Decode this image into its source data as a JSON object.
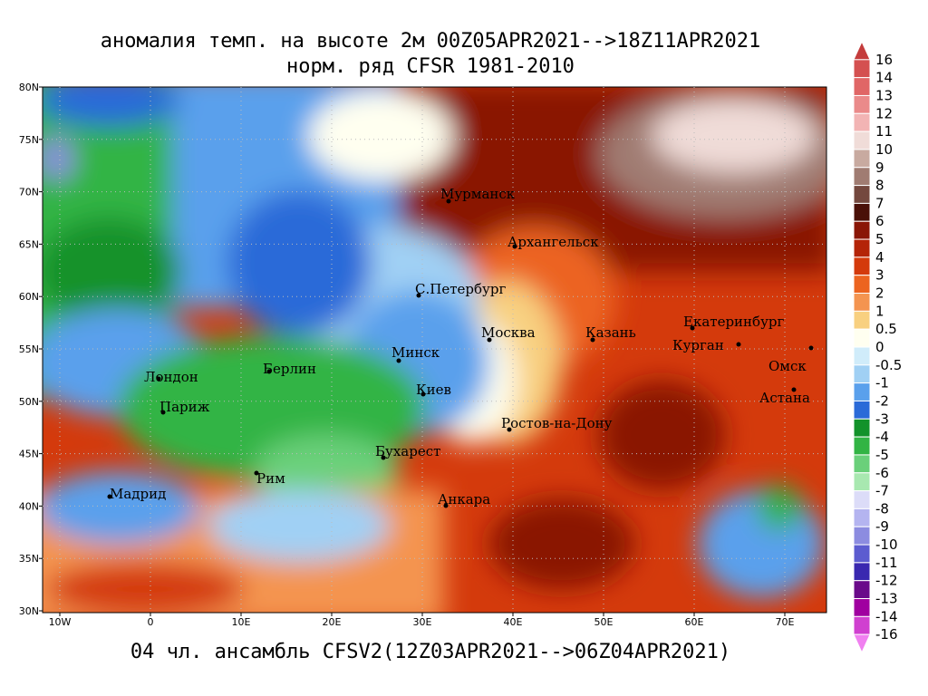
{
  "title": [
    "аномалия темп. на высоте 2м 00Z05APR2021-->18Z11APR2021",
    "норм. ряд CFSR 1981-2010"
  ],
  "footer": "04 чл. ансамбль CFSV2(12Z03APR2021-->06Z04APR2021)",
  "map": {
    "lat_labels": [
      "80N",
      "75N",
      "70N",
      "65N",
      "60N",
      "55N",
      "50N",
      "45N",
      "40N",
      "35N",
      "30N"
    ],
    "lon_labels": [
      "10W",
      "0",
      "10E",
      "20E",
      "30E",
      "40E",
      "50E",
      "60E",
      "70E"
    ],
    "cities": [
      "Мурманск",
      "Архангельск",
      "С.Петербург",
      "Москва",
      "Казань",
      "Екатеринбург",
      "Курган",
      "Омск",
      "Астана",
      "Минск",
      "Киев",
      "Ростов-на-Дону",
      "Берлин",
      "Лондон",
      "Париж",
      "Бухарест",
      "Рим",
      "Мадрид",
      "Анкара"
    ]
  },
  "colorbar": {
    "labels": [
      "16",
      "14",
      "13",
      "12",
      "11",
      "10",
      "9",
      "8",
      "7",
      "6",
      "5",
      "4",
      "3",
      "2",
      "1",
      "0.5",
      "0",
      "-0.5",
      "-1",
      "-2",
      "-3",
      "-4",
      "-5",
      "-6",
      "-7",
      "-8",
      "-9",
      "-10",
      "-11",
      "-12",
      "-13",
      "-14",
      "-16"
    ],
    "colors": [
      "#c43c3c",
      "#d45050",
      "#e06666",
      "#ea8a8a",
      "#f2b4b4",
      "#f0dcd8",
      "#c8aaa0",
      "#a07c72",
      "#74483e",
      "#4a1008",
      "#8a1606",
      "#b42408",
      "#d43a0c",
      "#ec6420",
      "#f49450",
      "#f8d080",
      "#fffff0",
      "#d0ecfa",
      "#a0d0f4",
      "#5aa0ec",
      "#2a6ad8",
      "#12922a",
      "#32b444",
      "#6ad07a",
      "#a8e8b0",
      "#dcdcf8",
      "#b4b4f0",
      "#8c8ce0",
      "#5c5cd0",
      "#3a28b0",
      "#6a0a8a",
      "#a000a0",
      "#d040d0",
      "#f080f0"
    ]
  }
}
